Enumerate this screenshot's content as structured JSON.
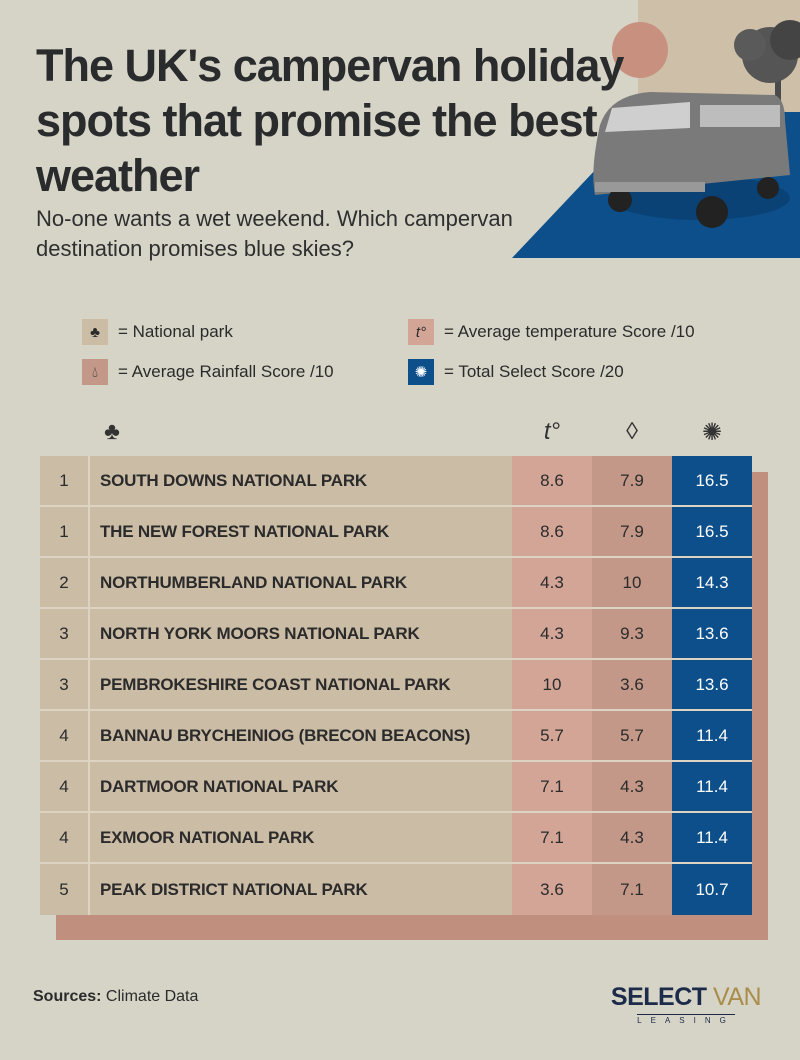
{
  "title": "The UK's campervan holiday spots that promise the best weather",
  "subtitle": "No-one wants a wet weekend. Which campervan destination promises blue skies?",
  "legend": {
    "park": "= National park",
    "temp": "= Average temperature Score /10",
    "rain": "= Average Rainfall Score /10",
    "total": "=  Total Select Score /20"
  },
  "icons": {
    "park": "tree-icon",
    "temp": "temperature-icon",
    "rain": "raindrop-icon",
    "total": "sun-icon"
  },
  "colors": {
    "temp": "#d2a597",
    "rain": "#c39888",
    "total": "#0c4f8a",
    "row": "#cbbca6"
  },
  "rows": [
    {
      "rank": "1",
      "name": "South Downs National Park",
      "temp": "8.6",
      "rain": "7.9",
      "total": "16.5"
    },
    {
      "rank": "1",
      "name": "The New Forest National Park",
      "temp": "8.6",
      "rain": "7.9",
      "total": "16.5"
    },
    {
      "rank": "2",
      "name": "Northumberland National Park",
      "temp": "4.3",
      "rain": "10",
      "total": "14.3"
    },
    {
      "rank": "3",
      "name": "North York Moors National Park",
      "temp": "4.3",
      "rain": "9.3",
      "total": "13.6"
    },
    {
      "rank": "3",
      "name": "Pembrokeshire Coast National Park",
      "temp": "10",
      "rain": "3.6",
      "total": "13.6"
    },
    {
      "rank": "4",
      "name": "Bannau Brycheiniog (Brecon Beacons)",
      "temp": "5.7",
      "rain": "5.7",
      "total": "11.4"
    },
    {
      "rank": "4",
      "name": "Dartmoor National Park",
      "temp": "7.1",
      "rain": "4.3",
      "total": "11.4"
    },
    {
      "rank": "4",
      "name": "Exmoor National Park",
      "temp": "7.1",
      "rain": "4.3",
      "total": "11.4"
    },
    {
      "rank": "5",
      "name": "Peak District National Park",
      "temp": "3.6",
      "rain": "7.1",
      "total": "10.7"
    }
  ],
  "sources": {
    "label": "Sources:",
    "value": "Climate Data"
  },
  "logo": {
    "brand1": "SELECT",
    "brand2": "VAN",
    "sub": "LEASING"
  }
}
